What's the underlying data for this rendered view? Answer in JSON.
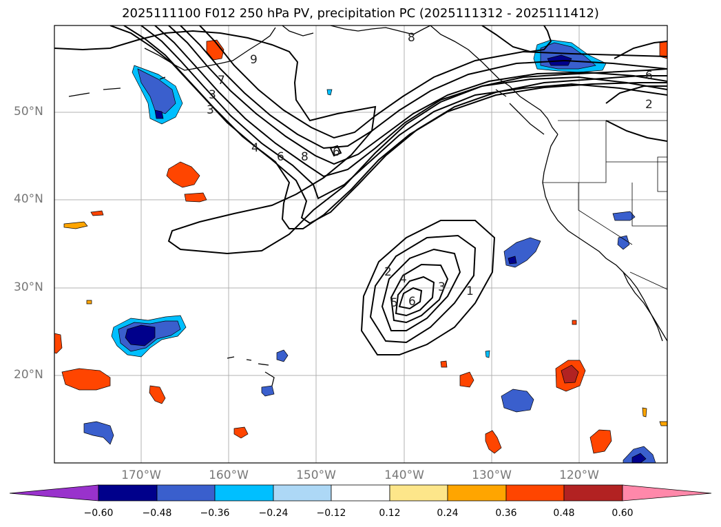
{
  "title": "2025111100 F012 250 hPa PV, precipitation PC (2025111312 - 2025111412)",
  "lat_labels": [
    "50°N",
    "40°N",
    "30°N",
    "20°N"
  ],
  "lon_labels": [
    "170°W",
    "160°W",
    "150°W",
    "140°W",
    "130°W",
    "120°W"
  ],
  "colorbar": {
    "labels": [
      "−0.60",
      "−0.48",
      "−0.36",
      "−0.24",
      "−0.12",
      "0.12",
      "0.24",
      "0.36",
      "0.48",
      "0.60"
    ],
    "colors": [
      "#9932cc",
      "#00008b",
      "#3a5fcd",
      "#00bfff",
      "#add8f6",
      "#ffffff",
      "#fde68a",
      "#ffa500",
      "#ff4500",
      "#b22222",
      "#ff88aa"
    ]
  },
  "contour_labels": {
    "pv_jet": [
      "9",
      "8",
      "7",
      "3",
      "3",
      "4",
      "6",
      "8",
      "6",
      "6",
      "2"
    ],
    "cutoff_low": [
      "2",
      "4",
      "5",
      "6",
      "3",
      "1"
    ]
  }
}
